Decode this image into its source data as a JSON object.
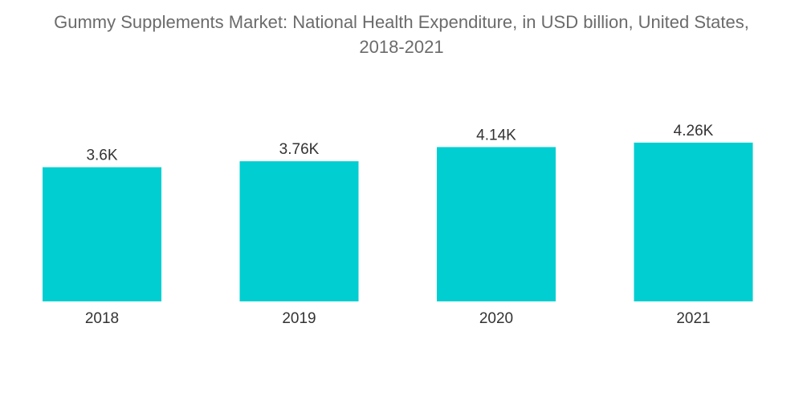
{
  "title_line1": "Gummy Supplements Market: National Health Expenditure, in USD billion, United States,",
  "title_line2": "2018-2021",
  "colors": {
    "bar": "#00CED1",
    "title": "#6b6b6b",
    "label": "#333333"
  },
  "chart_data": {
    "type": "bar",
    "title": "Gummy Supplements Market: National Health Expenditure, in USD billion, United States, 2018-2021",
    "categories": [
      "2018",
      "2019",
      "2020",
      "2021"
    ],
    "values": [
      3600,
      3760,
      4140,
      4260
    ],
    "value_labels": [
      "3.6K",
      "3.76K",
      "4.14K",
      "4.26K"
    ],
    "xlabel": "",
    "ylabel": "",
    "ylim": [
      0,
      5000
    ],
    "grid": false,
    "legend": "none"
  }
}
